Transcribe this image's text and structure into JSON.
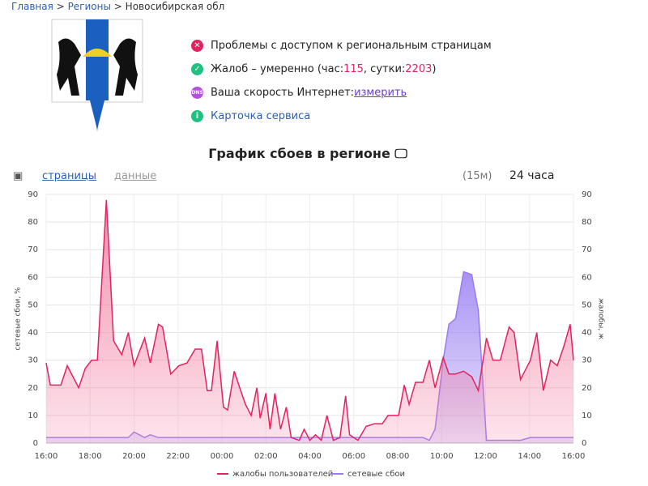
{
  "breadcrumbs": [
    "Главная",
    "Регионы",
    "Новосибирская обл"
  ],
  "crumb_separator": ">",
  "status": {
    "access": "Проблемы с доступом к региональным страницам",
    "complaints": {
      "text": "Жалоб – умеренно (час: ",
      "hour": 115,
      "separator": ", сутки: ",
      "day": 2203,
      "end": ")"
    },
    "speed": {
      "text": "Ваша скорость Интернет: ",
      "link": "измерить"
    },
    "card": "Карточка сервиса"
  },
  "controls": {
    "pages": "страницы",
    "data": "данные",
    "interval": "(15м)",
    "period": "24 часа"
  },
  "chart_data": {
    "type": "area",
    "title": "График сбоев в регионе",
    "ylabel": "сетевые сбои, %",
    "y2label": "жалобы, ж",
    "xlim": [
      0,
      24
    ],
    "xticks": [
      {
        "value": 0,
        "label": "16:00"
      },
      {
        "value": 2,
        "label": "18:00"
      },
      {
        "value": 4,
        "label": "20:00"
      },
      {
        "value": 6,
        "label": "22:00"
      },
      {
        "value": 8,
        "label": "00:00"
      },
      {
        "value": 10,
        "label": "02:00"
      },
      {
        "value": 12,
        "label": "04:00"
      },
      {
        "value": 14,
        "label": "06:00"
      },
      {
        "value": 16,
        "label": "08:00"
      },
      {
        "value": 18,
        "label": "10:00"
      },
      {
        "value": 20,
        "label": "12:00"
      },
      {
        "value": 22,
        "label": "14:00"
      },
      {
        "value": 24,
        "label": "16:00"
      }
    ],
    "ylim": [
      0,
      90
    ],
    "yticks": [
      0,
      10,
      20,
      30,
      40,
      50,
      60,
      70,
      80,
      90
    ],
    "y2lim": [
      0,
      90
    ],
    "y2ticks": [
      0,
      10,
      20,
      30,
      40,
      50,
      60,
      70,
      80,
      90
    ],
    "grid": true,
    "x": [
      0,
      0.19,
      0.67,
      0.96,
      1.48,
      1.78,
      2.07,
      2.33,
      2.74,
      3.07,
      3.44,
      3.74,
      4,
      4.48,
      4.74,
      5.11,
      5.3,
      5.67,
      6.04,
      6.41,
      6.78,
      7.07,
      7.33,
      7.52,
      7.78,
      8.07,
      8.26,
      8.56,
      8.81,
      9.07,
      9.33,
      9.59,
      9.74,
      10,
      10.19,
      10.41,
      10.67,
      10.93,
      11.15,
      11.52,
      11.74,
      12,
      12.26,
      12.52,
      12.78,
      13.07,
      13.37,
      13.63,
      13.81,
      14.19,
      14.56,
      14.93,
      15.3,
      15.56,
      16.04,
      16.3,
      16.52,
      16.81,
      17.15,
      17.44,
      17.7,
      18.07,
      18.33,
      18.63,
      19,
      19.37,
      19.67,
      20.04,
      20.33,
      20.67,
      21.07,
      21.3,
      21.59,
      22.04,
      22.33,
      22.63,
      22.96,
      23.26,
      23.56,
      23.85,
      24
    ],
    "series": [
      {
        "name": "жалобы пользователей",
        "color": "#e0245e",
        "fill": "#f27aa0",
        "axis": "y2",
        "values": [
          29,
          21,
          21,
          28,
          20,
          27,
          30,
          30,
          88,
          37,
          32,
          40,
          28,
          38,
          29,
          43,
          42,
          25,
          28,
          29,
          34,
          34,
          19,
          19,
          37,
          13,
          12,
          26,
          20,
          14,
          10,
          20,
          9,
          18,
          5,
          18,
          5,
          13,
          2,
          1,
          5,
          1,
          3,
          1,
          10,
          1,
          2,
          17,
          3,
          1,
          6,
          7,
          7,
          10,
          10,
          21,
          14,
          22,
          22,
          30,
          20,
          31,
          25,
          25,
          26,
          24,
          19,
          38,
          30,
          30,
          42,
          40,
          23,
          30,
          40,
          19,
          30,
          28,
          35,
          43,
          30
        ]
      },
      {
        "name": "сетевые сбои",
        "color": "#9b7bf0",
        "fill": "#9a80f2",
        "values": [
          2,
          2,
          2,
          2,
          2,
          2,
          2,
          2,
          2,
          2,
          2,
          2,
          4,
          2,
          3,
          2,
          2,
          2,
          2,
          2,
          2,
          2,
          2,
          2,
          2,
          2,
          2,
          2,
          2,
          2,
          2,
          2,
          2,
          2,
          2,
          2,
          2,
          2,
          2,
          2,
          2,
          2,
          2,
          2,
          2,
          2,
          2,
          2,
          2,
          2,
          2,
          2,
          2,
          2,
          2,
          2,
          2,
          2,
          2,
          1,
          5,
          30,
          43,
          45,
          62,
          61,
          48,
          1,
          1,
          1,
          1,
          1,
          1,
          2,
          2,
          2,
          2,
          2,
          2,
          2,
          2
        ]
      }
    ]
  }
}
